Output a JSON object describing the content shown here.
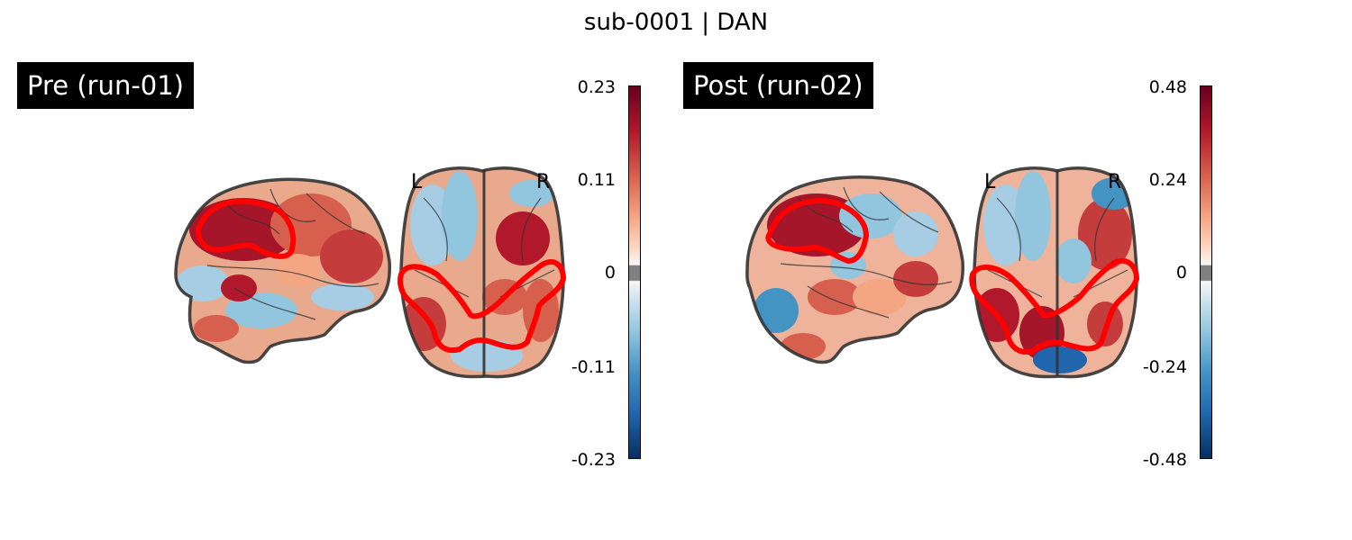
{
  "figure": {
    "title": "sub-0001 | DAN"
  },
  "panels": [
    {
      "label": "Pre (run-01)",
      "orientation": {
        "left": "L",
        "right": "R"
      },
      "colorbar": {
        "ticks": [
          "0.23",
          "0.11",
          "0",
          "-0.11",
          "-0.23"
        ],
        "vmin": -0.23,
        "vmax": 0.23,
        "colormap": "RdBu_r"
      }
    },
    {
      "label": "Post (run-02)",
      "orientation": {
        "left": "L",
        "right": "R"
      },
      "colorbar": {
        "ticks": [
          "0.48",
          "0.24",
          "0",
          "-0.24",
          "-0.48"
        ],
        "vmin": -0.48,
        "vmax": 0.48,
        "colormap": "RdBu_r"
      }
    }
  ],
  "colors": {
    "contour": "#ff0000",
    "outline": "#333333",
    "hot": "#b2182b",
    "cold": "#2166ac"
  }
}
